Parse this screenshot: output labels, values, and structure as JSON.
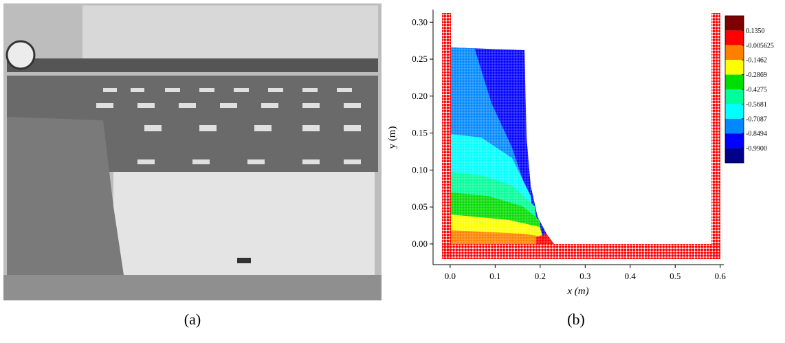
{
  "panels": [
    {
      "label": "(a)"
    },
    {
      "label": "(b)",
      "xlabel": "x (m)",
      "ylabel": "y (m)",
      "xlim": [
        -0.038,
        0.608
      ],
      "ylim": [
        -0.028,
        0.317
      ],
      "xticks": [
        {
          "value": 0,
          "label": "0.0"
        },
        0.1,
        0.2,
        0.3,
        0.4,
        0.5,
        0.6
      ],
      "yticks": [
        {
          "value": 0,
          "label": "0.00"
        },
        0.05,
        {
          "value": 0.1,
          "label": "0.10"
        },
        0.15,
        {
          "value": 0.2,
          "label": "0.20"
        },
        0.25,
        {
          "value": 0.3,
          "label": "0.30"
        }
      ],
      "colorbar": {
        "colors": [
          "#7f0000",
          "#ff0000",
          "#ff8000",
          "#ffff00",
          "#00dd00",
          "#00ff99",
          "#00ffff",
          "#0088ff",
          "#0000ff",
          "#00008b"
        ],
        "levels": [
          {
            "value": 0.135,
            "label": "0.1350"
          },
          -0.005625,
          -0.1462,
          -0.2869,
          -0.4275,
          -0.5681,
          -0.7087,
          -0.8494,
          {
            "value": -0.99,
            "label": "-0.9900"
          }
        ]
      }
    }
  ]
}
